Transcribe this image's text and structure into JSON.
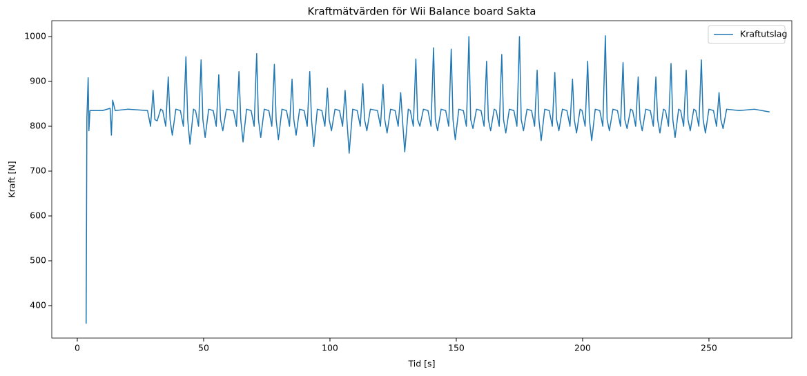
{
  "chart_data": {
    "type": "line",
    "title": "Kraftmätvärden för Wii Balance board Sakta",
    "xlabel": "Tid [s]",
    "ylabel": "Kraft [N]",
    "xlim": [
      -10.1,
      282.8
    ],
    "ylim": [
      327.7,
      1035.4
    ],
    "xticks": [
      0,
      50,
      100,
      150,
      200,
      250
    ],
    "yticks": [
      400,
      500,
      600,
      700,
      800,
      900,
      1000
    ],
    "legend": "upper right",
    "series": [
      {
        "name": "Kraftutslag",
        "color": "#1f77b4",
        "x": [
          3.5,
          3.8,
          4.3,
          4.6,
          5,
          10,
          13,
          13.5,
          14,
          15,
          20,
          27.8,
          29,
          30,
          30.7,
          31.6,
          33,
          33.8,
          35,
          36,
          36.7,
          37.6,
          39,
          40.8,
          42,
          43,
          43.7,
          44.6,
          46,
          46.8,
          48,
          49,
          49.7,
          50.6,
          52,
          53.8,
          55,
          56,
          56.7,
          57.6,
          59,
          61.8,
          63,
          64,
          64.7,
          65.6,
          67,
          68.8,
          70,
          71,
          71.7,
          72.6,
          74,
          75.8,
          77,
          78,
          78.7,
          79.6,
          81,
          82.8,
          84,
          85,
          85.7,
          86.6,
          88,
          89.8,
          91,
          92,
          92.7,
          93.6,
          95,
          96.8,
          98,
          99,
          99.7,
          100.6,
          102,
          103.8,
          105,
          106,
          106.7,
          107.6,
          109,
          110.8,
          112,
          113,
          113.7,
          114.6,
          116,
          118.8,
          120,
          121,
          121.7,
          122.6,
          124,
          125.8,
          127,
          128,
          128.7,
          129.6,
          131,
          131.8,
          133,
          134,
          134.7,
          135.6,
          137,
          138.8,
          140,
          141,
          141.7,
          142.6,
          144,
          145.8,
          147,
          148,
          148.7,
          149.6,
          151,
          152.8,
          154,
          155,
          155.7,
          156.6,
          158,
          159.8,
          161,
          162,
          162.7,
          163.6,
          165,
          165.8,
          167,
          168,
          168.7,
          169.6,
          171,
          172.8,
          174,
          175,
          175.7,
          176.6,
          178,
          179.8,
          181,
          182,
          182.7,
          183.6,
          185,
          186.8,
          188,
          189,
          189.7,
          190.6,
          192,
          193.8,
          195,
          196,
          196.7,
          197.6,
          199,
          199.8,
          201,
          202,
          202.7,
          203.6,
          205,
          206.8,
          208,
          209,
          209.7,
          210.6,
          212,
          213.8,
          215,
          216,
          216.7,
          217.6,
          219,
          219.8,
          221,
          222,
          222.7,
          223.6,
          225,
          226.8,
          228,
          229,
          229.7,
          230.6,
          232,
          232.8,
          234,
          235,
          235.7,
          236.6,
          238,
          238.8,
          240,
          241,
          241.7,
          242.6,
          244,
          244.8,
          246,
          247,
          247.7,
          248.6,
          250,
          251.8,
          253,
          254,
          254.7,
          255.6,
          257,
          262,
          268,
          274
        ],
        "values": [
          360,
          820,
          908,
          790,
          835,
          835,
          840,
          780,
          858,
          835,
          838,
          835,
          800,
          880,
          815,
          812,
          838,
          835,
          800,
          910,
          815,
          780,
          838,
          835,
          800,
          955,
          815,
          760,
          838,
          835,
          800,
          948,
          815,
          775,
          838,
          835,
          800,
          915,
          815,
          790,
          838,
          835,
          800,
          922,
          815,
          765,
          838,
          835,
          800,
          962,
          815,
          775,
          838,
          835,
          800,
          938,
          815,
          770,
          838,
          835,
          800,
          905,
          815,
          780,
          838,
          835,
          800,
          922,
          815,
          755,
          838,
          835,
          800,
          885,
          815,
          790,
          838,
          835,
          800,
          880,
          815,
          740,
          838,
          835,
          800,
          895,
          815,
          790,
          838,
          835,
          800,
          893,
          815,
          785,
          838,
          835,
          800,
          875,
          815,
          743,
          838,
          835,
          800,
          950,
          815,
          800,
          838,
          835,
          800,
          975,
          815,
          790,
          838,
          835,
          800,
          972,
          815,
          770,
          838,
          835,
          800,
          1000,
          815,
          795,
          838,
          835,
          800,
          945,
          815,
          790,
          838,
          835,
          800,
          960,
          815,
          785,
          838,
          835,
          800,
          1000,
          815,
          790,
          838,
          835,
          800,
          925,
          815,
          768,
          838,
          835,
          800,
          920,
          815,
          790,
          838,
          835,
          800,
          905,
          815,
          785,
          838,
          835,
          800,
          945,
          815,
          768,
          838,
          835,
          800,
          1002,
          815,
          790,
          838,
          835,
          800,
          942,
          815,
          795,
          838,
          835,
          800,
          910,
          815,
          790,
          838,
          835,
          800,
          910,
          815,
          785,
          838,
          835,
          800,
          940,
          815,
          775,
          838,
          835,
          800,
          925,
          815,
          790,
          838,
          835,
          800,
          948,
          815,
          785,
          838,
          835,
          800,
          875,
          815,
          795,
          838,
          835,
          838,
          832
        ]
      }
    ]
  }
}
